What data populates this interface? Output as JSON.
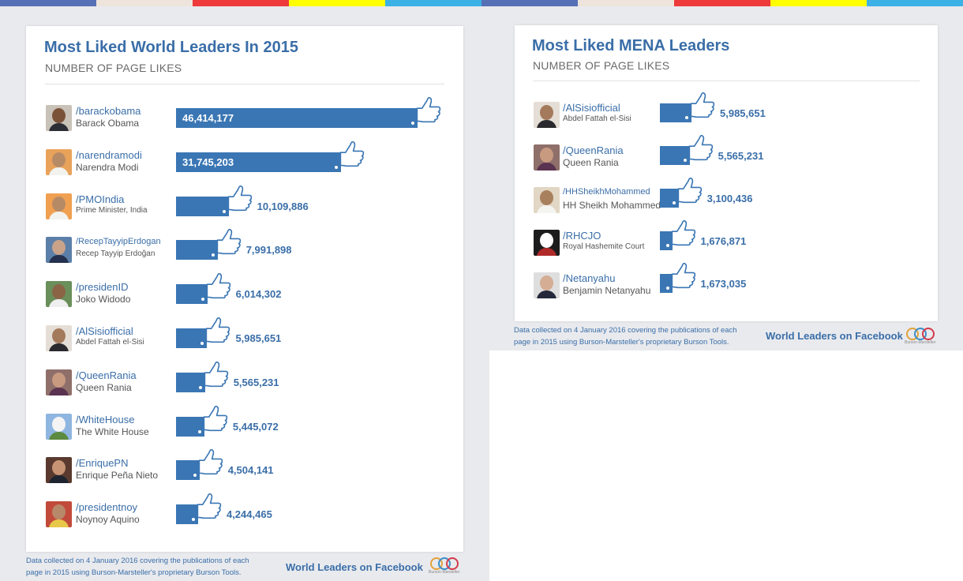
{
  "colors": {
    "bar": "#3a76b4",
    "accent": "#3a6ea8",
    "stripe": [
      "#5570b5",
      "#efe4dc",
      "#ee3a3a",
      "#ffff00",
      "#3cb1e6",
      "#5570b5",
      "#efe4dc",
      "#ee3a3a",
      "#ffff00",
      "#3cb1e6"
    ]
  },
  "footer": {
    "note": "Data collected on 4 January 2016 covering the publications of each page in 2015 using  Burson-Marsteller's proprietary Burson Tools.",
    "brand": "World Leaders on Facebook",
    "logo_text": "Burson-Marsteller"
  },
  "chart_data": [
    {
      "type": "bar",
      "orientation": "horizontal",
      "title": "Most Liked World Leaders In 2015",
      "subtitle": "NUMBER OF PAGE LIKES",
      "values_label_position": "inside-for-top-two, outside-otherwise",
      "rows": [
        {
          "handle": "/barackobama",
          "name": "Barack Obama",
          "value": 46414177,
          "label": "46,414,177",
          "avatar": "obama-photo",
          "skin": "#7a5238",
          "cloth": "#2d2d36",
          "bg": "#c9c2b8"
        },
        {
          "handle": "/narendramodi",
          "name": "Narendra Modi",
          "value": 31745203,
          "label": "31,745,203",
          "avatar": "modi-photo",
          "skin": "#b78a66",
          "cloth": "#f2f2ee",
          "bg": "#e9a25a"
        },
        {
          "handle": "/PMOIndia",
          "name": "Prime Minister, India",
          "value": 10109886,
          "label": "10,109,886",
          "avatar": "pmo-india-photo",
          "skin": "#b78a66",
          "cloth": "#f2f2ee",
          "bg": "#f0a050"
        },
        {
          "handle": "/RecepTayyipErdogan",
          "name": "Recep Tayyip Erdoğan",
          "value": 7991898,
          "label": "7,991,898",
          "avatar": "erdogan-photo",
          "skin": "#c9a28a",
          "cloth": "#23304e",
          "bg": "#5b7fa8"
        },
        {
          "handle": "/presidenID",
          "name": "Joko Widodo",
          "value": 6014302,
          "label": "6,014,302",
          "avatar": "widodo-photo",
          "skin": "#8b6446",
          "cloth": "#efefef",
          "bg": "#6a8f5a"
        },
        {
          "handle": "/AlSisiofficial",
          "name": "Abdel Fattah el-Sisi",
          "value": 5985651,
          "label": "5,985,651",
          "avatar": "sisi-photo",
          "skin": "#a47a5c",
          "cloth": "#2a2a2e",
          "bg": "#e4ded6"
        },
        {
          "handle": "/QueenRania",
          "name": "Queen Rania",
          "value": 5565231,
          "label": "5,565,231",
          "avatar": "queen-rania-photo",
          "skin": "#c89a80",
          "cloth": "#5a3350",
          "bg": "#8f6f6a"
        },
        {
          "handle": "/WhiteHouse",
          "name": "The White House",
          "value": 5445072,
          "label": "5,445,072",
          "avatar": "white-house-photo",
          "skin": "#f4f4f4",
          "cloth": "#5c8a40",
          "bg": "#8fb6e0"
        },
        {
          "handle": "/EnriquePN",
          "name": "Enrique Peña Nieto",
          "value": 4504141,
          "label": "4,504,141",
          "avatar": "pena-nieto-photo",
          "skin": "#c69474",
          "cloth": "#1e2430",
          "bg": "#5a3a2e"
        },
        {
          "handle": "/presidentnoy",
          "name": "Noynoy Aquino",
          "value": 4244465,
          "label": "4,244,465",
          "avatar": "aquino-photo",
          "skin": "#b8886a",
          "cloth": "#e8c84a",
          "bg": "#c24a3a"
        }
      ]
    },
    {
      "type": "bar",
      "orientation": "horizontal",
      "title": "Most Liked MENA Leaders",
      "subtitle": "NUMBER OF PAGE LIKES",
      "rows": [
        {
          "handle": "/AlSisiofficial",
          "name": "Abdel Fattah el-Sisi",
          "value": 5985651,
          "label": "5,985,651",
          "avatar": "sisi-photo",
          "skin": "#a47a5c",
          "cloth": "#2a2a2e",
          "bg": "#e4ded6"
        },
        {
          "handle": "/QueenRania",
          "name": "Queen Rania",
          "value": 5565231,
          "label": "5,565,231",
          "avatar": "queen-rania-photo",
          "skin": "#c89a80",
          "cloth": "#5a3350",
          "bg": "#8f6f6a"
        },
        {
          "handle": "/HHSheikhMohammed",
          "name": "HH Sheikh Mohammed",
          "value": 3100436,
          "label": "3,100,436",
          "avatar": "sheikh-mohammed-photo",
          "skin": "#a8805e",
          "cloth": "#f4f4f0",
          "bg": "#e2d6c4"
        },
        {
          "handle": "/RHCJO",
          "name": "Royal Hashemite Court",
          "value": 1676871,
          "label": "1,676,871",
          "avatar": "royal-court-emblem",
          "skin": "#ffffff",
          "cloth": "#b02a2a",
          "bg": "#1c1c1c"
        },
        {
          "handle": "/Netanyahu",
          "name": "Benjamin Netanyahu",
          "value": 1673035,
          "label": "1,673,035",
          "avatar": "netanyahu-photo",
          "skin": "#d4ad94",
          "cloth": "#24283a",
          "bg": "#dedede"
        }
      ]
    }
  ]
}
